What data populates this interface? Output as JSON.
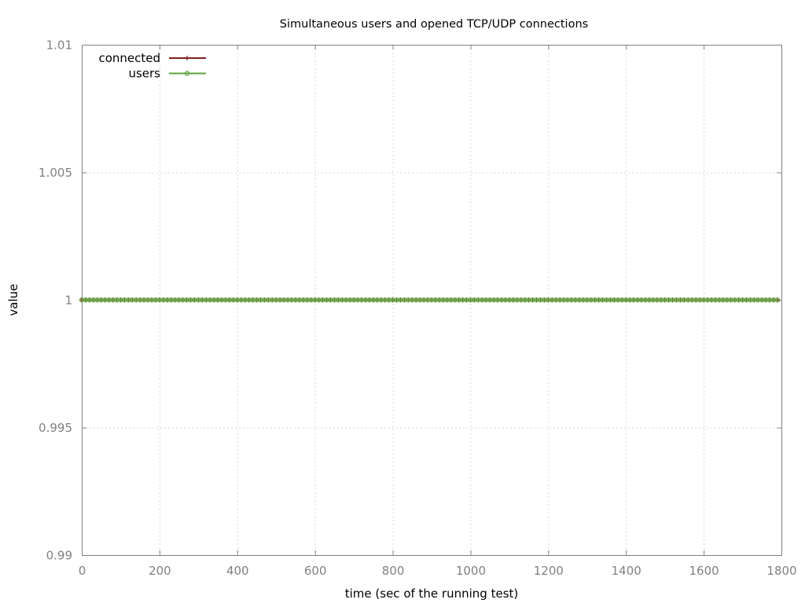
{
  "chart_data": {
    "type": "line",
    "title": "Simultaneous users and opened TCP/UDP connections",
    "xlabel": "time (sec of the running test)",
    "ylabel": "value",
    "xlim": [
      0,
      1800
    ],
    "ylim": [
      0.99,
      1.01
    ],
    "x_ticks": [
      0,
      200,
      400,
      600,
      800,
      1000,
      1200,
      1400,
      1600,
      1800
    ],
    "y_ticks": [
      0.99,
      0.995,
      1,
      1.005,
      1.01
    ],
    "y_tick_labels": [
      "0.99",
      "0.995",
      "1",
      "1.005",
      "1.01"
    ],
    "grid": true,
    "legend_position": "top-left",
    "x_sampling": {
      "start": 0,
      "end": 1790,
      "step": 10
    },
    "series": [
      {
        "name": "connected",
        "color": "#7f1f1a",
        "marker": "plus",
        "constant_value": 1
      },
      {
        "name": "users",
        "color": "#5ea33a",
        "marker": "open-circle",
        "constant_value": 1
      }
    ]
  }
}
